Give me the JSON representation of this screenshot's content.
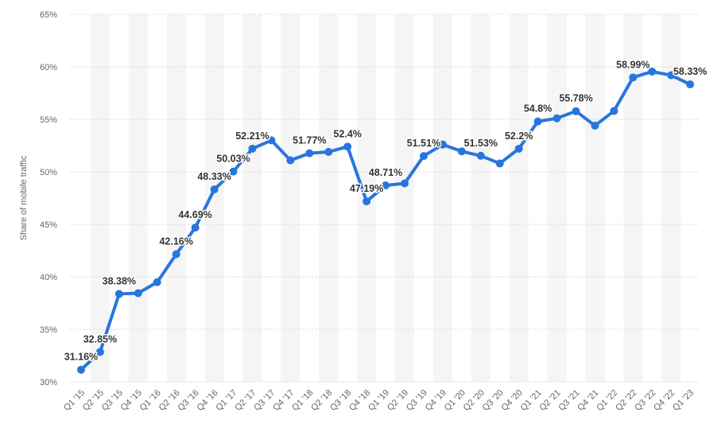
{
  "chart_data": {
    "type": "line",
    "ylabel": "Share of mobile traffic",
    "ylim": [
      30,
      65
    ],
    "yticks": [
      "30%",
      "35%",
      "40%",
      "45%",
      "50%",
      "55%",
      "60%",
      "65%"
    ],
    "categories": [
      "Q1 '15",
      "Q2 '15",
      "Q3 '15",
      "Q4 '15",
      "Q1 '16",
      "Q2 '16",
      "Q3 '16",
      "Q4 '16",
      "Q1 '17",
      "Q2 '17",
      "Q3 '17",
      "Q4 '17",
      "Q1 '18",
      "Q2 '18",
      "Q3 '18",
      "Q4 '18",
      "Q1 '19",
      "Q2 '19",
      "Q3 '19",
      "Q4 '19",
      "Q1 '20",
      "Q2 '20",
      "Q3 '20",
      "Q4 '20",
      "Q1 '21",
      "Q2 '21",
      "Q3 '21",
      "Q4 '21",
      "Q1 '22",
      "Q2 '22",
      "Q3 '22",
      "Q4 '22",
      "Q1 '23"
    ],
    "series": [
      {
        "values": [
          31.16,
          32.85,
          38.38,
          38.45,
          39.5,
          42.16,
          44.69,
          48.33,
          50.03,
          52.21,
          53.0,
          51.1,
          51.77,
          51.9,
          52.4,
          47.19,
          48.71,
          48.9,
          51.51,
          52.6,
          51.95,
          51.53,
          50.8,
          52.2,
          54.8,
          55.1,
          55.78,
          54.4,
          55.8,
          58.99,
          59.55,
          59.2,
          58.33
        ],
        "labels": [
          "31.16%",
          "32.85%",
          "38.38%",
          "",
          "",
          "42.16%",
          "44.69%",
          "48.33%",
          "50.03%",
          "52.21%",
          "",
          "",
          "51.77%",
          "",
          "52.4%",
          "47.19%",
          "48.71%",
          "",
          "51.51%",
          "",
          "",
          "51.53%",
          "",
          "52.2%",
          "54.8%",
          "",
          "55.78%",
          "",
          "",
          "58.99%",
          "",
          "",
          "58.33%"
        ]
      }
    ],
    "line_color": "#2876dd",
    "band_color": "#f5f5f5",
    "grid": true
  }
}
